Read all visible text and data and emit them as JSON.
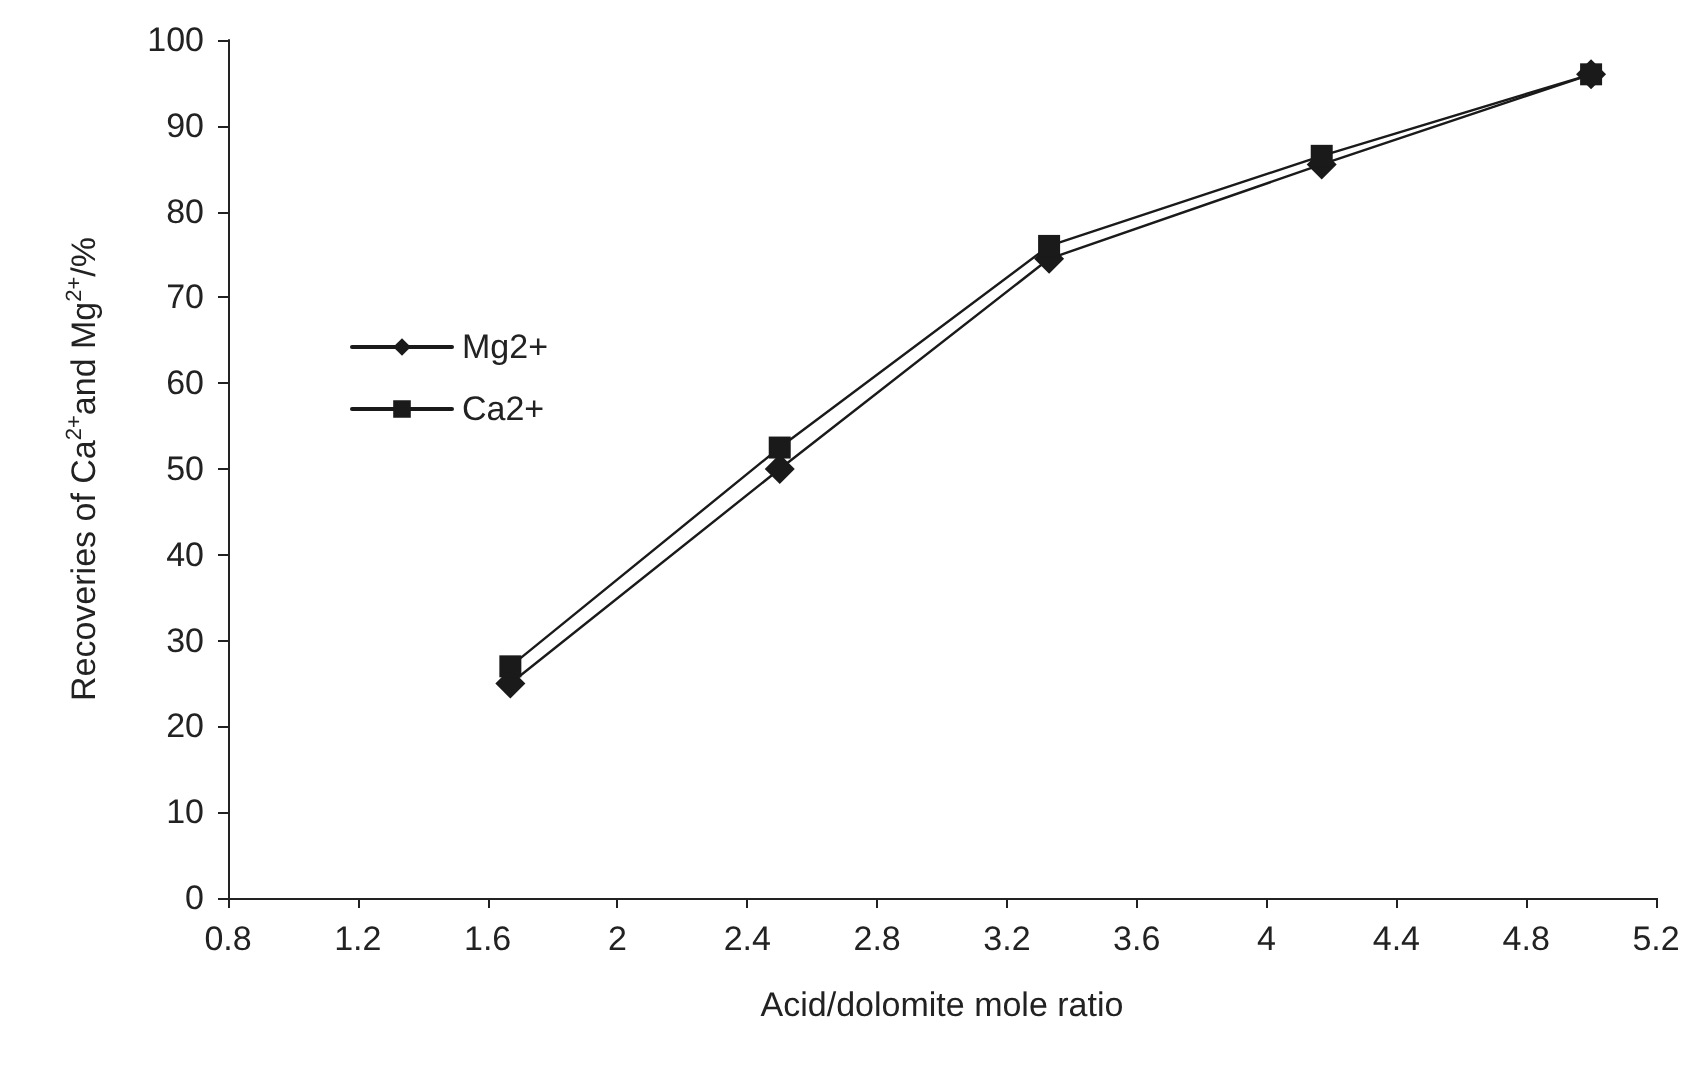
{
  "chart_data": {
    "type": "line",
    "xlabel": "Acid/dolomite mole ratio",
    "ylabel": "Recoveries of Ca$^{2+}$and Mg$^{2+}$/%",
    "x": [
      1.67,
      2.5,
      3.33,
      4.17,
      5.0
    ],
    "series": [
      {
        "name": "Mg2+",
        "color": "#1a1a1a",
        "marker": "diamond",
        "values": [
          25,
          50,
          74.5,
          85.5,
          96
        ]
      },
      {
        "name": "Ca2+",
        "color": "#1a1a1a",
        "marker": "square",
        "values": [
          27,
          52.5,
          76,
          86.5,
          96
        ]
      }
    ],
    "xlim": [
      0.8,
      5.2
    ],
    "xticks": [
      0.8,
      1.2,
      1.6,
      2,
      2.4,
      2.8,
      3.2,
      3.6,
      4,
      4.4,
      4.8,
      5.2
    ],
    "ylim": [
      0,
      100
    ],
    "yticks": [
      0,
      10,
      20,
      30,
      40,
      50,
      60,
      70,
      80,
      90,
      100
    ],
    "grid": false,
    "legend": "left",
    "line_style": "solid"
  }
}
